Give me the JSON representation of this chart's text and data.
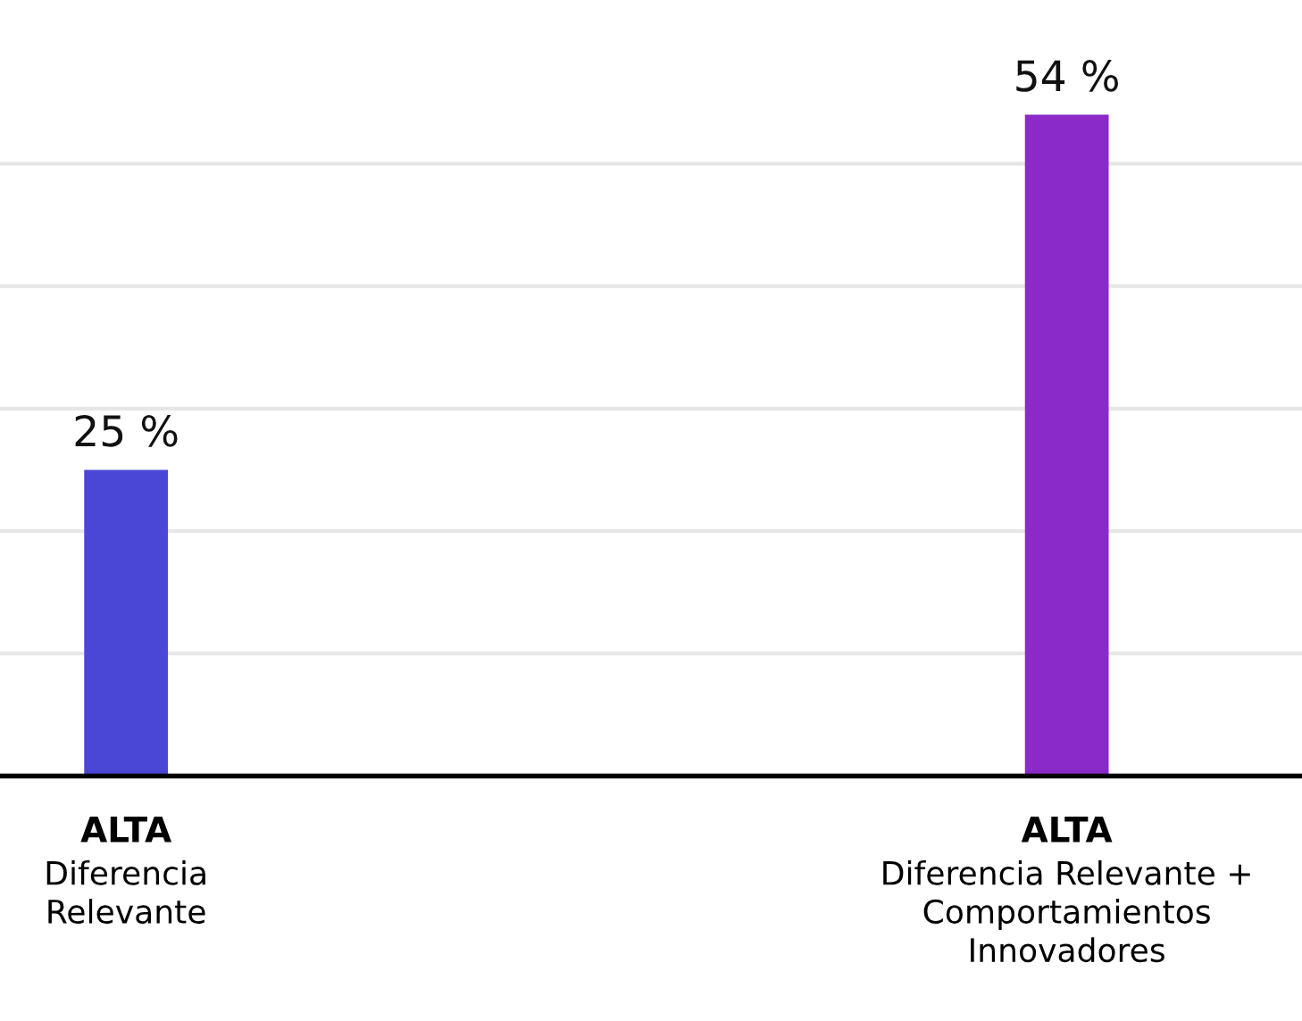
{
  "chart_data": {
    "type": "bar",
    "categories": [
      "ALTA\nDiferencia\nRelevante",
      "ALTA\nDiferencia Relevante +\nComportamientos\nInnovadores"
    ],
    "values": [
      25,
      54
    ],
    "colors": [
      "#4a46d6",
      "#8a2ac8"
    ],
    "value_labels": [
      "25 %",
      "54 %"
    ],
    "grid": "y"
  }
}
